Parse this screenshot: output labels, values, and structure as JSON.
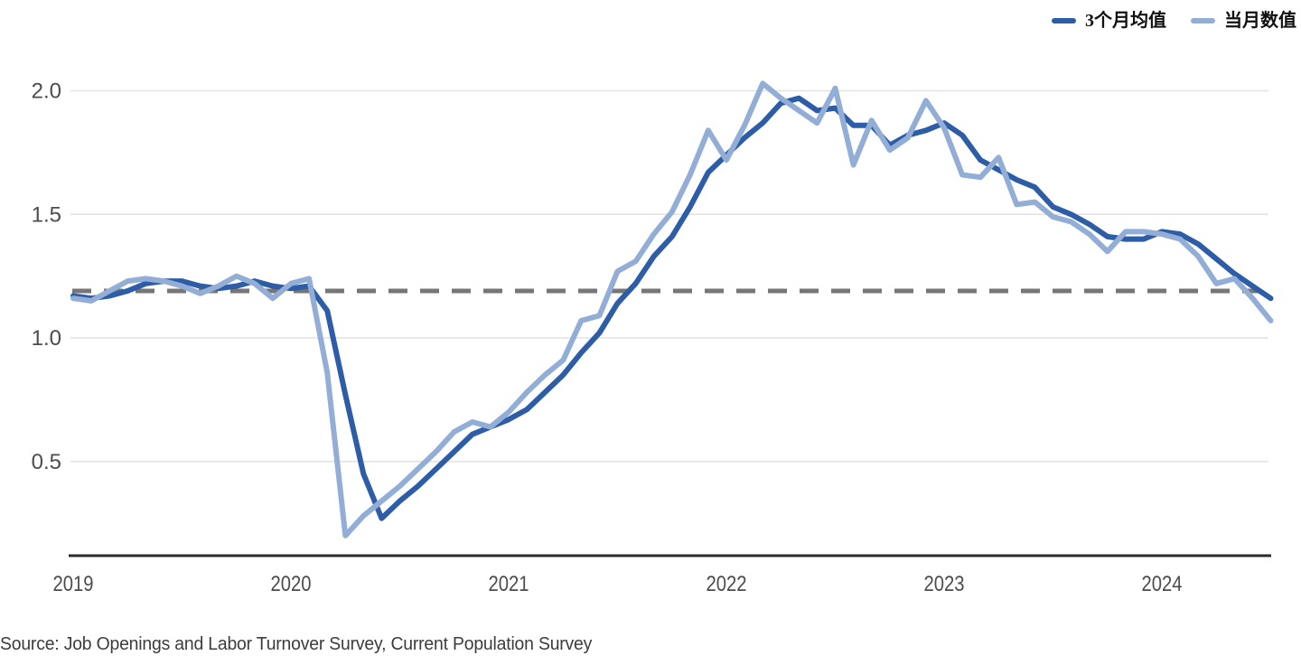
{
  "legend": {
    "items": [
      {
        "label": "3个月均值",
        "color": "#2d5da7"
      },
      {
        "label": "当月数值",
        "color": "#92aed6"
      }
    ]
  },
  "footer": {
    "source_note": "Source: Job Openings and Labor Turnover Survey, Current Population Survey"
  },
  "chart_data": {
    "type": "line",
    "title": "",
    "x": {
      "start": "2019-01",
      "end": "2024-07",
      "step": "month",
      "tick_labels": [
        "2019",
        "2020",
        "2021",
        "2022",
        "2023",
        "2024"
      ],
      "tick_positions_months": [
        0,
        12,
        24,
        36,
        48,
        60
      ]
    },
    "y": {
      "ticks": [
        0.5,
        1.0,
        1.5,
        2.0
      ],
      "tick_labels": [
        "0.5",
        "1.0",
        "1.5",
        "2.0"
      ],
      "lim": [
        0.12,
        2.16
      ],
      "grid": true
    },
    "reference_line": {
      "value": 1.19,
      "style": "dashed",
      "color": "#767676"
    },
    "legend_position": "top-right",
    "series": [
      {
        "name": "3个月均值",
        "color": "#2d5da7",
        "width": 6,
        "values": [
          1.17,
          1.16,
          1.17,
          1.19,
          1.22,
          1.23,
          1.23,
          1.21,
          1.2,
          1.21,
          1.23,
          1.21,
          1.2,
          1.21,
          1.11,
          0.77,
          0.45,
          0.27,
          0.34,
          0.4,
          0.47,
          0.54,
          0.61,
          0.64,
          0.67,
          0.71,
          0.78,
          0.85,
          0.94,
          1.02,
          1.14,
          1.22,
          1.33,
          1.41,
          1.53,
          1.67,
          1.74,
          1.81,
          1.87,
          1.95,
          1.97,
          1.92,
          1.93,
          1.86,
          1.86,
          1.78,
          1.82,
          1.84,
          1.87,
          1.82,
          1.72,
          1.68,
          1.64,
          1.61,
          1.53,
          1.5,
          1.46,
          1.41,
          1.4,
          1.4,
          1.43,
          1.42,
          1.38,
          1.32,
          1.26,
          1.21,
          1.16
        ]
      },
      {
        "name": "当月数值",
        "color": "#92aed6",
        "width": 6,
        "values": [
          1.16,
          1.15,
          1.19,
          1.23,
          1.24,
          1.23,
          1.21,
          1.18,
          1.21,
          1.25,
          1.22,
          1.16,
          1.22,
          1.24,
          0.86,
          0.2,
          0.28,
          0.34,
          0.4,
          0.47,
          0.54,
          0.62,
          0.66,
          0.64,
          0.7,
          0.78,
          0.85,
          0.91,
          1.07,
          1.09,
          1.27,
          1.31,
          1.42,
          1.51,
          1.66,
          1.84,
          1.72,
          1.86,
          2.03,
          1.97,
          1.92,
          1.87,
          2.01,
          1.7,
          1.88,
          1.76,
          1.81,
          1.96,
          1.85,
          1.66,
          1.65,
          1.73,
          1.54,
          1.55,
          1.49,
          1.47,
          1.42,
          1.35,
          1.43,
          1.43,
          1.42,
          1.4,
          1.33,
          1.22,
          1.24,
          1.16,
          1.07
        ]
      }
    ],
    "source_note": "Source: Job Openings and Labor Turnover Survey, Current Population Survey"
  }
}
